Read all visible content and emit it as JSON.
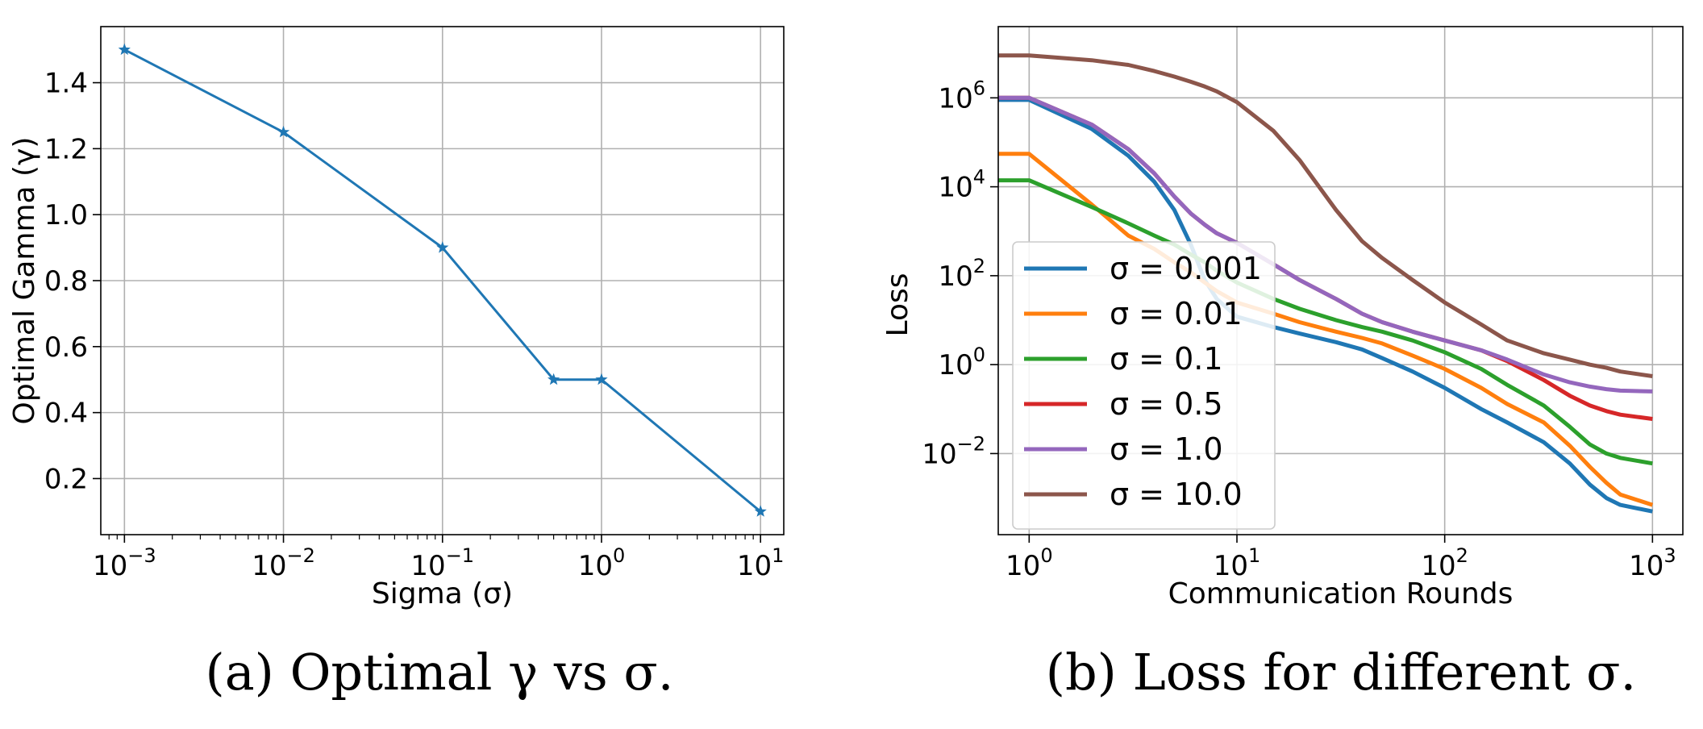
{
  "captions": {
    "a": "(a) Optimal γ vs σ.",
    "b": "(b) Loss for different σ."
  },
  "chart_data": [
    {
      "type": "line",
      "xlabel": "Sigma (σ)",
      "ylabel": "Optimal Gamma (γ)",
      "xscale": "log",
      "xlim": [
        0.00071,
        14
      ],
      "ylim": [
        0.03,
        1.57
      ],
      "grid": true,
      "x_ticks": [
        0.001,
        0.01,
        0.1,
        1,
        10
      ],
      "x_tick_labels": [
        {
          "base": "10",
          "exp": "−3"
        },
        {
          "base": "10",
          "exp": "−2"
        },
        {
          "base": "10",
          "exp": "−1"
        },
        {
          "base": "10",
          "exp": "0"
        },
        {
          "base": "10",
          "exp": "1"
        }
      ],
      "y_ticks": [
        0.2,
        0.4,
        0.6,
        0.8,
        1.0,
        1.2,
        1.4
      ],
      "y_tick_labels": [
        "0.2",
        "0.4",
        "0.6",
        "0.8",
        "1.0",
        "1.2",
        "1.4"
      ],
      "series": [
        {
          "color": "#1f77b4",
          "marker": "star",
          "x": [
            0.001,
            0.01,
            0.1,
            0.5,
            1.0,
            10.0
          ],
          "y": [
            1.5,
            1.25,
            0.9,
            0.5,
            0.5,
            0.1
          ]
        }
      ]
    },
    {
      "type": "line",
      "xlabel": "Communication Rounds",
      "ylabel": "Loss",
      "xscale": "log",
      "yscale": "log",
      "xlim": [
        0.71,
        1400
      ],
      "ylim": [
        0.00015,
        40000000
      ],
      "grid": true,
      "legend": "center-left",
      "x_ticks": [
        1,
        10,
        100,
        1000
      ],
      "x_tick_labels": [
        {
          "base": "10",
          "exp": "0"
        },
        {
          "base": "10",
          "exp": "1"
        },
        {
          "base": "10",
          "exp": "2"
        },
        {
          "base": "10",
          "exp": "3"
        }
      ],
      "y_ticks": [
        0.01,
        1,
        100,
        10000,
        1000000
      ],
      "y_tick_labels": [
        {
          "base": "10",
          "exp": "−2"
        },
        {
          "base": "10",
          "exp": "0"
        },
        {
          "base": "10",
          "exp": "2"
        },
        {
          "base": "10",
          "exp": "4"
        },
        {
          "base": "10",
          "exp": "6"
        }
      ],
      "x": [
        0.71,
        1,
        2,
        3,
        4,
        5,
        6,
        7,
        8,
        10,
        15,
        20,
        30,
        40,
        50,
        70,
        100,
        150,
        200,
        300,
        400,
        500,
        600,
        700,
        1000
      ],
      "series": [
        {
          "name": "σ = 0.001",
          "color": "#1f77b4",
          "values": [
            900000,
            900000,
            200000,
            50000,
            13000,
            3000,
            500,
            80,
            30,
            12,
            7,
            5,
            3.2,
            2.2,
            1.4,
            0.7,
            0.3,
            0.1,
            0.05,
            0.018,
            0.006,
            0.002,
            0.001,
            0.0007,
            0.0005
          ]
        },
        {
          "name": "σ = 0.01",
          "color": "#ff7f0e",
          "values": [
            55000,
            55000,
            4000,
            800,
            400,
            200,
            120,
            70,
            45,
            25,
            14,
            9,
            5.5,
            4,
            3,
            1.6,
            0.8,
            0.3,
            0.13,
            0.05,
            0.015,
            0.005,
            0.0022,
            0.0012,
            0.0007
          ]
        },
        {
          "name": "σ = 0.1",
          "color": "#2ca02c",
          "values": [
            14000,
            14000,
            3500,
            1500,
            800,
            500,
            300,
            200,
            130,
            70,
            30,
            18,
            10,
            7,
            5.5,
            3.5,
            1.9,
            0.8,
            0.35,
            0.12,
            0.04,
            0.016,
            0.01,
            0.008,
            0.006
          ]
        },
        {
          "name": "σ = 0.5",
          "color": "#d62728",
          "values": [
            1000000,
            1000000,
            250000,
            70000,
            20000,
            6000,
            2500,
            1400,
            900,
            550,
            180,
            80,
            30,
            14,
            9,
            5.5,
            3.5,
            2.1,
            1.2,
            0.45,
            0.2,
            0.12,
            0.09,
            0.075,
            0.06
          ]
        },
        {
          "name": "σ = 1.0",
          "color": "#9467bd",
          "values": [
            1000000,
            1000000,
            250000,
            70000,
            20000,
            6000,
            2500,
            1400,
            900,
            550,
            180,
            80,
            30,
            14,
            9,
            5.5,
            3.5,
            2.1,
            1.3,
            0.6,
            0.4,
            0.32,
            0.28,
            0.26,
            0.25
          ]
        },
        {
          "name": "σ = 10.0",
          "color": "#8c564b",
          "values": [
            9000000,
            9000000,
            7000000,
            5500000,
            4000000,
            3000000,
            2300000,
            1800000,
            1400000,
            800000,
            180000,
            40000,
            3000,
            600,
            250,
            80,
            25,
            8,
            3.5,
            1.8,
            1.3,
            1.0,
            0.85,
            0.7,
            0.55
          ]
        }
      ]
    }
  ]
}
